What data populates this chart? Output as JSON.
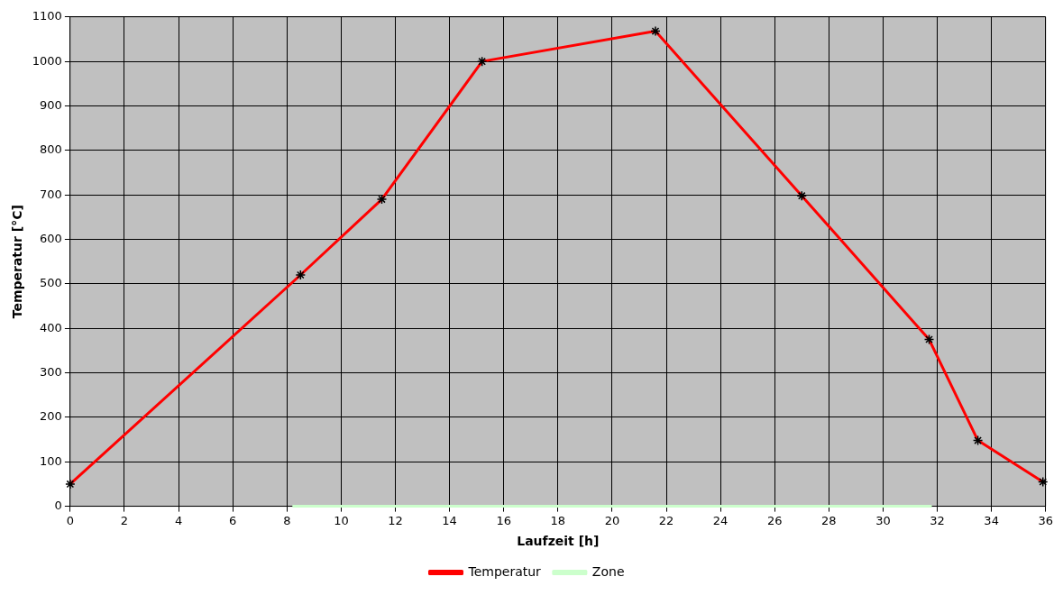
{
  "chart_data": {
    "type": "line",
    "xlabel": "Laufzeit [h]",
    "ylabel": "Temperatur [°C]",
    "xlim": [
      0,
      36
    ],
    "xticks": [
      0,
      2,
      4,
      6,
      8,
      10,
      12,
      14,
      16,
      18,
      20,
      22,
      24,
      26,
      28,
      30,
      32,
      34,
      36
    ],
    "ylim": [
      0,
      1100
    ],
    "yticks": [
      0,
      100,
      200,
      300,
      400,
      500,
      600,
      700,
      800,
      900,
      1000,
      1100
    ],
    "grid": true,
    "legend": "bottom",
    "series": [
      {
        "name": "Temperatur",
        "color": "#ff0000",
        "marker": "cross",
        "x": [
          0,
          8.5,
          11.5,
          15.2,
          21.6,
          27,
          31.7,
          33.5,
          35.9
        ],
        "values": [
          50,
          520,
          690,
          1000,
          1068,
          698,
          375,
          148,
          55
        ]
      },
      {
        "name": "Zone",
        "color": "#ccffcc",
        "marker": "none",
        "x": [
          8.2,
          31.8
        ],
        "values": [
          0,
          0
        ]
      }
    ]
  }
}
